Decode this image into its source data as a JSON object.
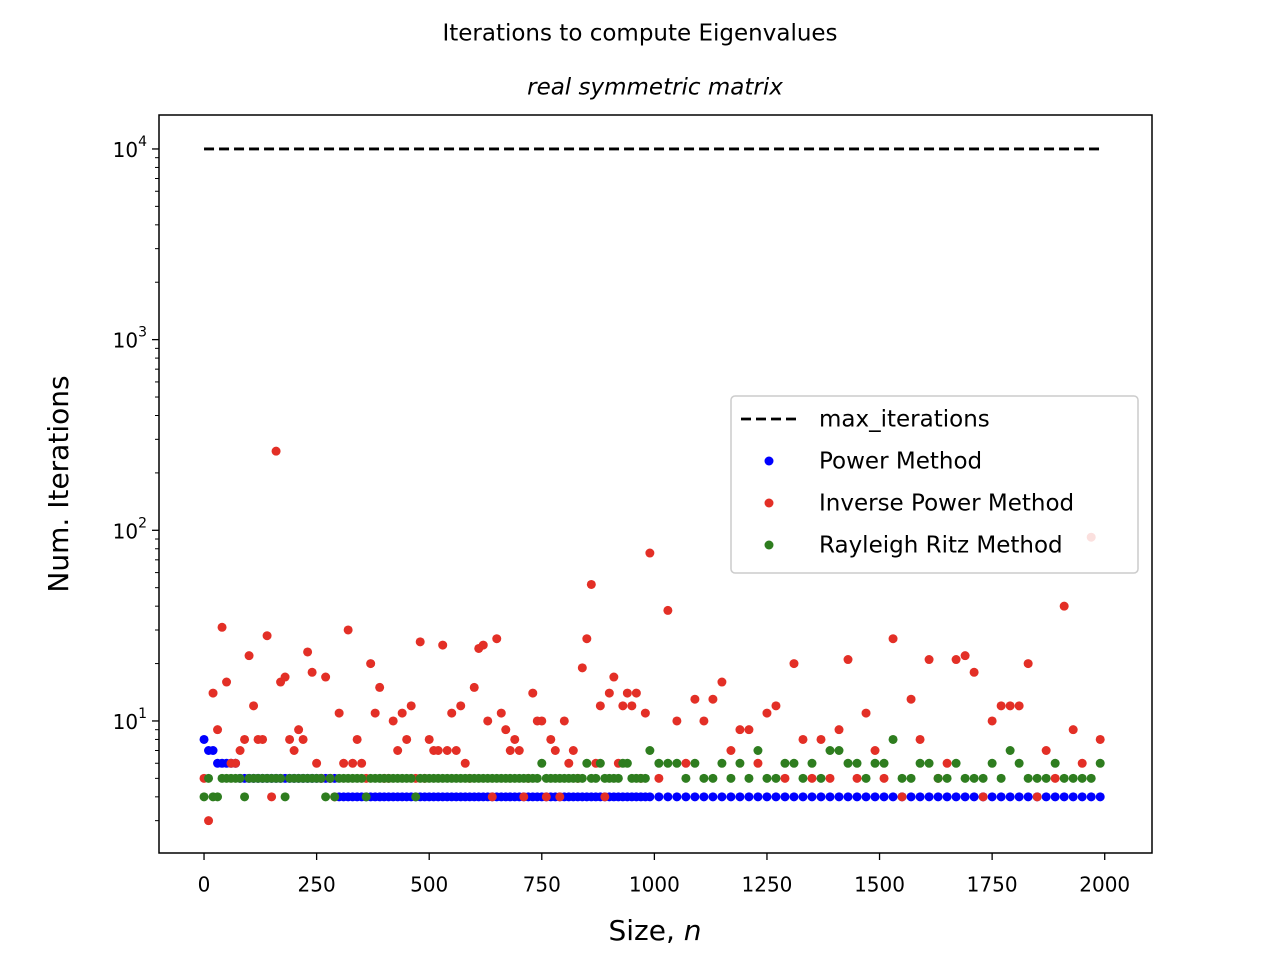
{
  "chart_data": {
    "type": "scatter",
    "title": "Iterations to compute Eigenvalues",
    "subtitle": "real symmetric matrix",
    "x_label": {
      "text": "Size, ",
      "var": "n"
    },
    "y_label": "Num. Iterations",
    "yscale": "log",
    "xlim": [
      -100,
      2105
    ],
    "ylim": [
      2.03,
      15070
    ],
    "xticks": [
      0,
      250,
      500,
      750,
      1000,
      1250,
      1500,
      1750,
      2000
    ],
    "yticks": [
      {
        "value": 10,
        "label": "10",
        "exp": "1"
      },
      {
        "value": 100,
        "label": "10",
        "exp": "2"
      },
      {
        "value": 1000,
        "label": "10",
        "exp": "3"
      },
      {
        "value": 10000,
        "label": "10",
        "exp": "4"
      }
    ],
    "legend": "center right",
    "x": [
      0,
      10,
      20,
      30,
      40,
      50,
      60,
      70,
      80,
      90,
      100,
      110,
      120,
      130,
      140,
      150,
      160,
      170,
      180,
      190,
      200,
      210,
      220,
      230,
      240,
      250,
      260,
      270,
      280,
      290,
      300,
      310,
      320,
      330,
      340,
      350,
      360,
      370,
      380,
      390,
      400,
      410,
      420,
      430,
      440,
      450,
      460,
      470,
      480,
      490,
      500,
      510,
      520,
      530,
      540,
      550,
      560,
      570,
      580,
      590,
      600,
      610,
      620,
      630,
      640,
      650,
      660,
      670,
      680,
      690,
      700,
      710,
      720,
      730,
      740,
      750,
      760,
      770,
      780,
      790,
      800,
      810,
      820,
      830,
      840,
      850,
      860,
      870,
      880,
      890,
      900,
      910,
      920,
      930,
      940,
      950,
      960,
      970,
      980,
      990,
      1010,
      1030,
      1050,
      1070,
      1090,
      1110,
      1130,
      1150,
      1170,
      1190,
      1210,
      1230,
      1250,
      1270,
      1290,
      1310,
      1330,
      1350,
      1370,
      1390,
      1410,
      1430,
      1450,
      1470,
      1490,
      1510,
      1530,
      1550,
      1570,
      1590,
      1610,
      1630,
      1650,
      1670,
      1690,
      1710,
      1730,
      1750,
      1770,
      1790,
      1810,
      1830,
      1850,
      1870,
      1890,
      1910,
      1930,
      1950,
      1970,
      1990
    ],
    "series": [
      {
        "name": "max_iterations",
        "kind": "line",
        "style": "dashed",
        "color": "#000000",
        "x": [
          0,
          1990
        ],
        "values": [
          10000,
          10000
        ]
      },
      {
        "name": "Power Method",
        "kind": "points",
        "color": "#0000ff",
        "values": [
          8,
          7,
          7,
          6,
          6,
          6,
          6,
          6,
          5,
          5,
          5,
          5,
          5,
          5,
          5,
          5,
          5,
          5,
          5,
          5,
          5,
          5,
          5,
          5,
          5,
          5,
          5,
          5,
          5,
          5,
          4,
          4,
          4,
          4,
          4,
          4,
          4,
          4,
          4,
          4,
          4,
          4,
          4,
          4,
          4,
          4,
          4,
          4,
          4,
          4,
          4,
          4,
          4,
          4,
          4,
          4,
          4,
          4,
          4,
          4,
          4,
          4,
          4,
          4,
          4,
          4,
          4,
          4,
          4,
          4,
          4,
          4,
          4,
          4,
          4,
          4,
          4,
          4,
          4,
          4,
          4,
          4,
          4,
          4,
          4,
          4,
          4,
          4,
          4,
          4,
          4,
          4,
          4,
          4,
          4,
          4,
          4,
          4,
          4,
          4,
          4,
          4,
          4,
          4,
          4,
          4,
          4,
          4,
          4,
          4,
          4,
          4,
          4,
          4,
          4,
          4,
          4,
          4,
          4,
          4,
          4,
          4,
          4,
          4,
          4,
          4,
          4,
          4,
          4,
          4,
          4,
          4,
          4,
          4,
          4,
          4,
          4,
          4,
          4,
          4,
          4,
          4,
          4,
          4,
          4,
          4,
          4,
          4,
          4,
          4
        ]
      },
      {
        "name": "Inverse Power Method",
        "kind": "points",
        "color": "#e32f26",
        "values": [
          5,
          3,
          14,
          9,
          31,
          16,
          6,
          6,
          7,
          8,
          22,
          12,
          8,
          8,
          28,
          4,
          260,
          16,
          17,
          8,
          7,
          9,
          8,
          23,
          18,
          6,
          5,
          17,
          5,
          4,
          11,
          6,
          30,
          6,
          8,
          6,
          5,
          20,
          11,
          15,
          5,
          5,
          10,
          7,
          11,
          8,
          12,
          5,
          26,
          5,
          8,
          7,
          7,
          25,
          7,
          11,
          7,
          12,
          6,
          5,
          15,
          24,
          25,
          10,
          4,
          27,
          11,
          9,
          7,
          8,
          7,
          4,
          5,
          14,
          10,
          10,
          4,
          8,
          7,
          4,
          10,
          6,
          7,
          5,
          19,
          27,
          52,
          6,
          12,
          4,
          14,
          17,
          6,
          12,
          14,
          12,
          14,
          5,
          11,
          76,
          5,
          38,
          10,
          6,
          13,
          10,
          13,
          16,
          7,
          9,
          9,
          6,
          11,
          12,
          5,
          20,
          8,
          5,
          8,
          5,
          9,
          21,
          5,
          11,
          7,
          5,
          27,
          4,
          13,
          8,
          21,
          5,
          6,
          21,
          22,
          18,
          4,
          10,
          12,
          12,
          12,
          20,
          4,
          7,
          5,
          40,
          9,
          6,
          92,
          8
        ]
      },
      {
        "name": "Rayleigh Ritz Method",
        "kind": "points",
        "color": "#2e7d1f",
        "values": [
          4,
          5,
          4,
          4,
          5,
          5,
          5,
          5,
          5,
          4,
          5,
          5,
          5,
          5,
          5,
          5,
          5,
          5,
          4,
          5,
          5,
          5,
          5,
          5,
          5,
          5,
          5,
          4,
          5,
          4,
          5,
          5,
          5,
          5,
          5,
          5,
          4,
          5,
          5,
          5,
          5,
          5,
          5,
          5,
          5,
          5,
          5,
          4,
          5,
          5,
          5,
          5,
          5,
          5,
          5,
          5,
          5,
          5,
          5,
          5,
          5,
          5,
          5,
          5,
          5,
          5,
          5,
          5,
          5,
          5,
          5,
          5,
          5,
          5,
          5,
          6,
          5,
          5,
          5,
          5,
          5,
          5,
          5,
          5,
          5,
          6,
          5,
          5,
          6,
          5,
          5,
          5,
          5,
          6,
          6,
          5,
          5,
          5,
          5,
          7,
          6,
          6,
          6,
          5,
          6,
          5,
          5,
          6,
          5,
          6,
          5,
          7,
          5,
          5,
          6,
          6,
          5,
          6,
          5,
          7,
          7,
          6,
          6,
          5,
          6,
          6,
          8,
          5,
          5,
          6,
          6,
          5,
          5,
          6,
          5,
          5,
          5,
          6,
          5,
          7,
          6,
          5,
          5,
          5,
          6,
          5,
          5,
          5,
          5,
          6
        ]
      }
    ]
  }
}
